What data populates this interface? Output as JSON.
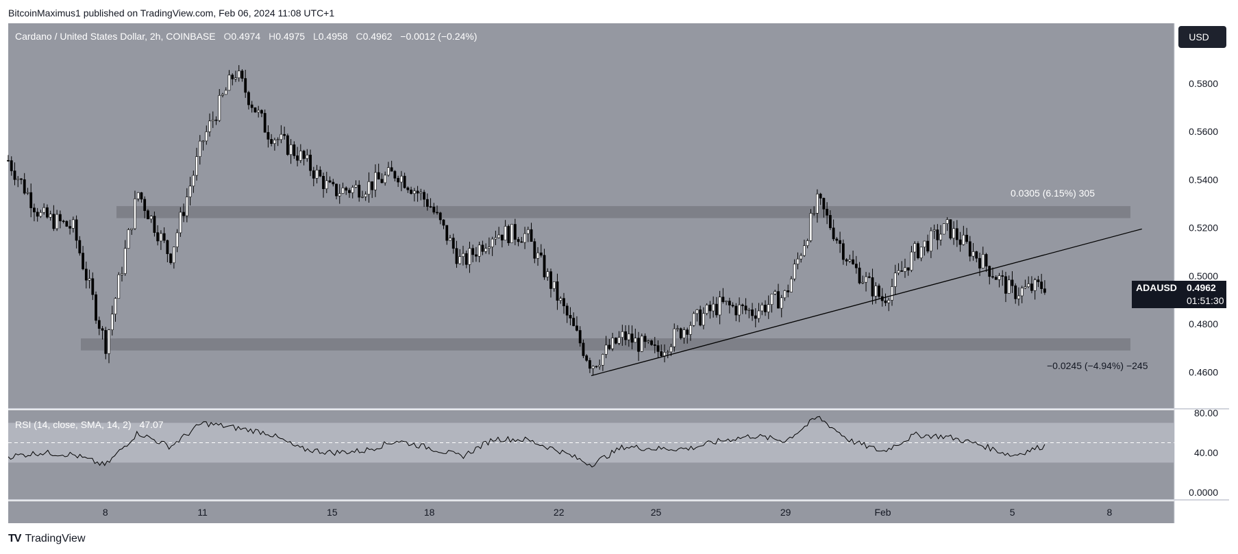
{
  "header": {
    "published": "BitcoinMaximus1 published on TradingView.com, Feb 06, 2024 11:08 UTC+1"
  },
  "footer": {
    "brand": "TradingView",
    "logo_text": "TV"
  },
  "currency_button": "USD",
  "legend": {
    "symbol": "Cardano / United States Dollar, 2h, COINBASE",
    "o_label": "O",
    "o": "0.4974",
    "h_label": "H",
    "h": "0.4975",
    "l_label": "L",
    "l": "0.4958",
    "c_label": "C",
    "c": "0.4962",
    "change": "−0.0012 (−0.24%)"
  },
  "price_tag": {
    "symbol": "ADAUSD",
    "price": "0.4962",
    "countdown": "01:51:30"
  },
  "rsi_legend": {
    "label": "RSI (14, close, SMA, 14, 2)",
    "value": "47.07"
  },
  "colors": {
    "pane_bg": "#9598a1",
    "band": "#7e8088",
    "rsi_band": "#b2b5be",
    "candle_up": "#ffffff",
    "candle_down": "#000000",
    "tag_bg": "#131722"
  },
  "chart_data": [
    {
      "type": "line",
      "title": "Cardano / United States Dollar, 2h, COINBASE",
      "x_tick_labels": [
        "8",
        "11",
        "15",
        "18",
        "22",
        "25",
        "29",
        "Feb",
        "5",
        "8"
      ],
      "y_tick_labels": [
        "0.5800",
        "0.5600",
        "0.5400",
        "0.5200",
        "0.5000",
        "0.4800",
        "0.4600"
      ],
      "ylim": [
        0.445,
        0.605
      ],
      "x_start": "2024-01-05",
      "x_end": "2024-02-10",
      "series": [
        {
          "name": "ADAUSD",
          "x": [
            "2024-01-05",
            "2024-01-06",
            "2024-01-07",
            "2024-01-08",
            "2024-01-09",
            "2024-01-10",
            "2024-01-11",
            "2024-01-12",
            "2024-01-13",
            "2024-01-14",
            "2024-01-15",
            "2024-01-16",
            "2024-01-17",
            "2024-01-18",
            "2024-01-19",
            "2024-01-20",
            "2024-01-21",
            "2024-01-22",
            "2024-01-23",
            "2024-01-24",
            "2024-01-25",
            "2024-01-26",
            "2024-01-27",
            "2024-01-28",
            "2024-01-29",
            "2024-01-30",
            "2024-01-31",
            "2024-02-01",
            "2024-02-02",
            "2024-02-03",
            "2024-02-04",
            "2024-02-05",
            "2024-02-06"
          ],
          "values": [
            0.548,
            0.525,
            0.52,
            0.471,
            0.535,
            0.508,
            0.556,
            0.585,
            0.56,
            0.55,
            0.535,
            0.537,
            0.543,
            0.53,
            0.505,
            0.518,
            0.517,
            0.49,
            0.463,
            0.475,
            0.468,
            0.48,
            0.488,
            0.485,
            0.492,
            0.531,
            0.505,
            0.49,
            0.51,
            0.52,
            0.507,
            0.493,
            0.496
          ]
        }
      ],
      "annotations": {
        "resistance_zone": [
          0.524,
          0.529
        ],
        "support_zone": [
          0.469,
          0.474
        ],
        "ascending_trendline": [
          {
            "x": "2024-01-23",
            "y": 0.4585
          },
          {
            "x": "2024-02-09",
            "y": 0.5195
          }
        ],
        "measure_up_label": "0.0305 (6.15%) 305",
        "measure_down_label": "−0.0245 (−4.94%) −245"
      }
    },
    {
      "type": "line",
      "title": "RSI (14, close, SMA, 14, 2)",
      "y_tick_labels": [
        "80.00",
        "40.00",
        "0.0000"
      ],
      "ylim": [
        0,
        80
      ],
      "band": [
        30,
        70
      ],
      "midline": 50,
      "series": [
        {
          "name": "RSI",
          "x": [
            "2024-01-05",
            "2024-01-06",
            "2024-01-07",
            "2024-01-08",
            "2024-01-09",
            "2024-01-10",
            "2024-01-11",
            "2024-01-12",
            "2024-01-13",
            "2024-01-14",
            "2024-01-15",
            "2024-01-16",
            "2024-01-17",
            "2024-01-18",
            "2024-01-19",
            "2024-01-20",
            "2024-01-21",
            "2024-01-22",
            "2024-01-23",
            "2024-01-24",
            "2024-01-25",
            "2024-01-26",
            "2024-01-27",
            "2024-01-28",
            "2024-01-29",
            "2024-01-30",
            "2024-01-31",
            "2024-02-01",
            "2024-02-02",
            "2024-02-03",
            "2024-02-04",
            "2024-02-05",
            "2024-02-06"
          ],
          "values": [
            36,
            40,
            38,
            27,
            60,
            46,
            70,
            65,
            60,
            44,
            40,
            42,
            52,
            45,
            36,
            54,
            53,
            42,
            28,
            46,
            44,
            44,
            52,
            57,
            52,
            76,
            52,
            41,
            58,
            56,
            48,
            37,
            47
          ]
        }
      ]
    }
  ]
}
